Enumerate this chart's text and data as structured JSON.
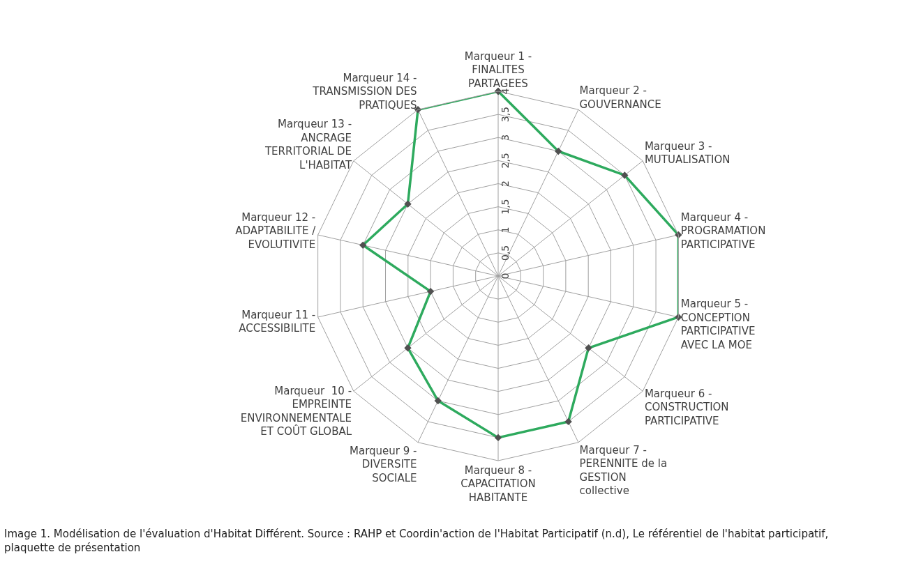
{
  "chart_data": {
    "type": "radar",
    "categories": [
      "Marqueur 1 - FINALITES PARTAGEES",
      "Marqueur 2 - GOUVERNANCE",
      "Marqueur 3 - MUTUALISATION",
      "Marqueur 4 - PROGRAMATION PARTICIPATIVE",
      "Marqueur 5 - CONCEPTION PARTICIPATIVE AVEC LA MOE",
      "Marqueur 6 -  CONSTRUCTION PARTICIPATIVE",
      "Marqueur 7 - PERENNITE de la GESTION collective",
      "Marqueur 8 - CAPACITATION HABITANTE",
      "Marqueur 9 - DIVERSITE SOCIALE",
      "Marqueur  10 -  EMPREINTE ENVIRONNEMENTALE ET COÛT GLOBAL",
      "Marqueur 11 - ACCESSIBILITE",
      "Marqueur 12 - ADAPTABILITE / EVOLUTIVITE",
      "Marqueur 13 - ANCRAGE TERRITORIAL DE L'HABITAT",
      "Marqueur 14 - TRANSMISSION DES PRATIQUES"
    ],
    "series": [
      {
        "color": "#2eaa5e",
        "values": [
          4,
          3,
          3.5,
          4,
          4,
          2.5,
          3.5,
          3.5,
          3,
          2.5,
          1.5,
          3,
          2.5,
          4
        ]
      }
    ],
    "ylim": [
      0,
      4
    ],
    "yticks": [
      0,
      {
        "value": 0.5,
        "label": "0,5"
      },
      1,
      {
        "value": 1.5,
        "label": "1,5"
      },
      2,
      {
        "value": 2.5,
        "label": "2,5"
      },
      3,
      {
        "value": 3.5,
        "label": "3,5"
      },
      4
    ],
    "marker": "diamond",
    "grid": true,
    "annotations": [
      "Image 1. Modélisation de l'évaluation d'Habitat Différent. Source : RAHP et Coordin'action de l'Habitat Participatif (n.d), Le référentiel de l'habitat participatif, plaquette de présentation"
    ]
  }
}
